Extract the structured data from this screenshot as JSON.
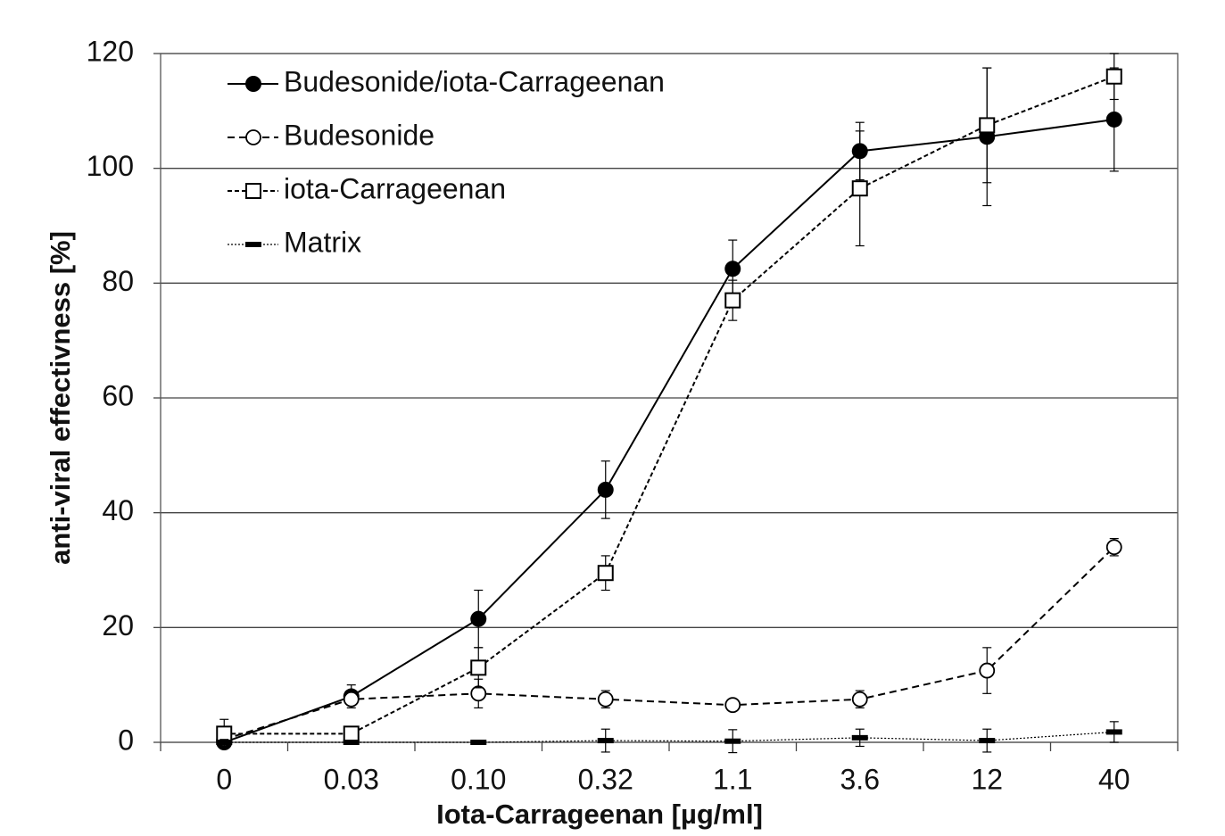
{
  "chart_data": {
    "type": "line",
    "xlabel": "Iota-Carrageenan  [µg/ml]",
    "ylabel": "anti-viral effectivness  [%]",
    "categories": [
      "0",
      "0.03",
      "0.10",
      "0.32",
      "1.1",
      "3.6",
      "12",
      "40"
    ],
    "ylim": [
      0,
      120
    ],
    "yticks": [
      0,
      20,
      40,
      60,
      80,
      100,
      120
    ],
    "grid": true,
    "legend": "upper left",
    "series": [
      {
        "name": "Budesonide/iota-Carrageenan",
        "color": "#000000",
        "dash": "solid",
        "marker": "filled-circle",
        "values": [
          0,
          8,
          21.5,
          44,
          82.5,
          103,
          105.5,
          108.5
        ],
        "errors": [
          0,
          2,
          5,
          5,
          5,
          5,
          12,
          9
        ]
      },
      {
        "name": "Budesonide",
        "color": "#000000",
        "dash": "dashed",
        "marker": "open-circle",
        "values": [
          0.5,
          7.5,
          8.5,
          7.5,
          6.5,
          7.5,
          12.5,
          34
        ],
        "errors": [
          1,
          1,
          2.5,
          1.5,
          1,
          1.5,
          4,
          1.5
        ]
      },
      {
        "name": "iota-Carrageenan",
        "color": "#000000",
        "dash": "short-dashed",
        "marker": "open-square",
        "values": [
          1.5,
          1.5,
          13,
          29.5,
          77,
          96.5,
          107.5,
          116
        ],
        "errors": [
          2.5,
          0.5,
          3.5,
          3,
          3.5,
          10,
          10,
          4
        ]
      },
      {
        "name": "Matrix",
        "color": "#000000",
        "dash": "dotted",
        "marker": "dash",
        "values": [
          0,
          0,
          0,
          0.3,
          0.2,
          0.8,
          0.3,
          1.8
        ],
        "errors": [
          0.5,
          0.3,
          0.3,
          2,
          2,
          1.5,
          2,
          1.8
        ]
      }
    ]
  }
}
